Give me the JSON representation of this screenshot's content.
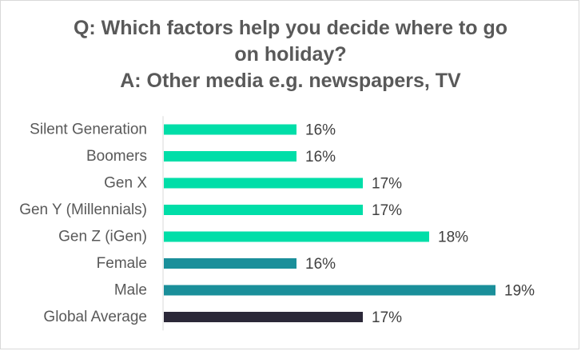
{
  "chart_data": {
    "type": "bar",
    "orientation": "horizontal",
    "title_lines": [
      "Q: Which factors help you decide where to go",
      "on holiday?",
      "A: Other media e.g. newspapers, TV"
    ],
    "categories": [
      "Silent Generation",
      "Boomers",
      "Gen X",
      "Gen Y (Millennials)",
      "Gen Z (iGen)",
      "Female",
      "Male",
      "Global Average"
    ],
    "values": [
      16,
      16,
      17,
      17,
      18,
      16,
      19,
      17
    ],
    "value_labels": [
      "16%",
      "16%",
      "17%",
      "17%",
      "18%",
      "16%",
      "19%",
      "17%"
    ],
    "colors": [
      "#00dea8",
      "#00dea8",
      "#00dea8",
      "#00dea8",
      "#00dea8",
      "#1a8f9a",
      "#1a8f9a",
      "#2b2838"
    ],
    "value_suffix": "%",
    "xlim": [
      14,
      20
    ],
    "xlabel": "",
    "ylabel": "",
    "grid": false,
    "legend": "none"
  }
}
